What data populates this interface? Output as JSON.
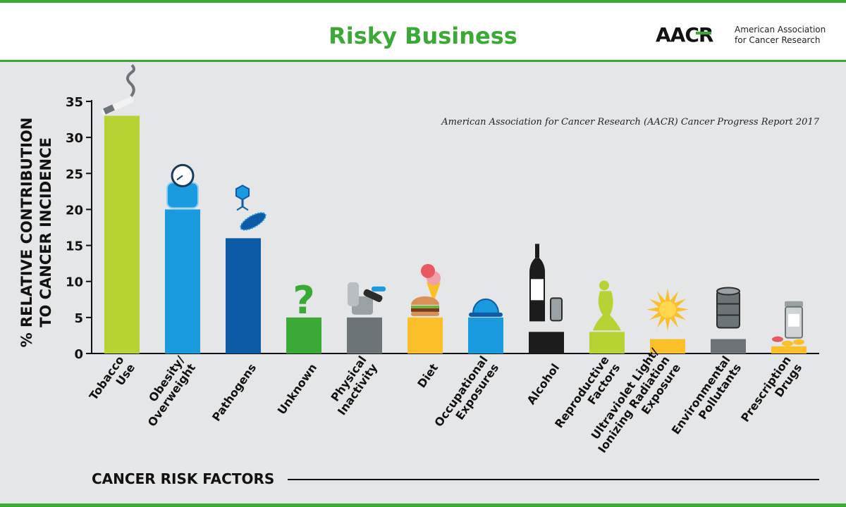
{
  "header": {
    "title": "Risky Business",
    "logo_text": "AACR",
    "org_name_line1": "American Association",
    "org_name_line2": "for Cancer Research"
  },
  "source_note": "American Association for Cancer Research (AACR) Cancer Progress Report 2017",
  "colors": {
    "brand_green": "#3aa935",
    "panel_bg": "#e5e6e8",
    "axis": "#111111"
  },
  "chart_data": {
    "type": "bar",
    "title": "",
    "ylabel_lines": [
      "% RELATIVE CONTRIBUTION",
      "TO CANCER INCIDENCE"
    ],
    "xlabel": "CANCER RISK FACTORS",
    "ylim": [
      0,
      35
    ],
    "yticks": [
      0,
      5,
      10,
      15,
      20,
      25,
      30,
      35
    ],
    "grid": false,
    "categories": [
      [
        "Tobacco",
        "Use"
      ],
      [
        "Obesity/",
        "Overweight"
      ],
      [
        "Pathogens"
      ],
      [
        "Unknown"
      ],
      [
        "Physical",
        "Inactivity"
      ],
      [
        "Diet"
      ],
      [
        "Occupational",
        "Exposures"
      ],
      [
        "Alcohol"
      ],
      [
        "Reproductive",
        "Factors"
      ],
      [
        "Ultraviolet Light/",
        "Ionizing Radiation",
        "Exposure"
      ],
      [
        "Environmental",
        "Pollutants"
      ],
      [
        "Prescription",
        "Drugs"
      ]
    ],
    "values": [
      33,
      20,
      16,
      5,
      5,
      5,
      5,
      3,
      3,
      2,
      2,
      1
    ],
    "bar_colors": [
      "#b6d334",
      "#1a9be0",
      "#0d5aa6",
      "#3aa935",
      "#6d7478",
      "#fbbf2a",
      "#1a9be0",
      "#1c1c1c",
      "#b6d334",
      "#fbbf2a",
      "#6d7478",
      "#fbbf2a"
    ],
    "icons": [
      "cigarette-icon",
      "scale-icon",
      "virus-bacteria-icon",
      "question-mark-icon",
      "recliner-chair-icon",
      "burger-icecream-icon",
      "hard-hat-icon",
      "wine-bottle-can-icon",
      "female-figure-icon",
      "sun-burst-icon",
      "oil-barrel-icon",
      "pill-bottle-icon"
    ]
  }
}
